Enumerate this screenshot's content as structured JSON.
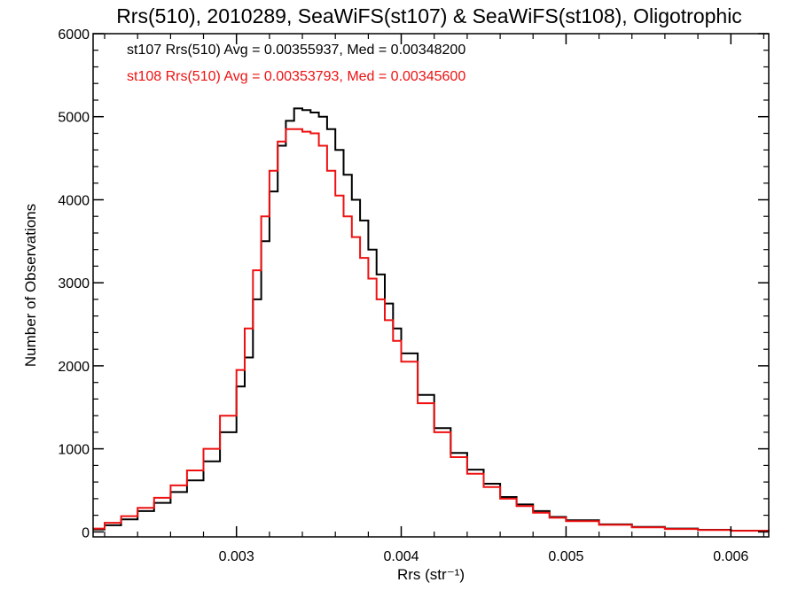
{
  "chart_data": {
    "type": "line",
    "step": true,
    "title": "Rrs(510), 2010289, SeaWiFS(st107) & SeaWiFS(st108), Oligotrophic",
    "xlabel": "Rrs (str⁻¹)",
    "ylabel": "Number of Observations",
    "xlim": [
      0.00213,
      0.00623
    ],
    "ylim": [
      -60,
      6000
    ],
    "xticks": [
      0.003,
      0.004,
      0.005,
      0.006
    ],
    "xtick_labels": [
      "0.003",
      "0.004",
      "0.005",
      "0.006"
    ],
    "yticks": [
      0,
      1000,
      2000,
      3000,
      4000,
      5000,
      6000
    ],
    "ytick_labels": [
      "0",
      "1000",
      "2000",
      "3000",
      "4000",
      "5000",
      "6000"
    ],
    "grid": false,
    "legend_position": "top-left",
    "x": [
      0.00213,
      0.0022,
      0.0023,
      0.0024,
      0.0025,
      0.0026,
      0.0027,
      0.0028,
      0.0029,
      0.003,
      0.00305,
      0.0031,
      0.00315,
      0.0032,
      0.00325,
      0.0033,
      0.00335,
      0.0034,
      0.00345,
      0.0035,
      0.00355,
      0.0036,
      0.00365,
      0.0037,
      0.00375,
      0.0038,
      0.00385,
      0.0039,
      0.00395,
      0.004,
      0.0041,
      0.0042,
      0.0043,
      0.0044,
      0.0045,
      0.0046,
      0.0047,
      0.0048,
      0.0049,
      0.005,
      0.0052,
      0.0054,
      0.0056,
      0.0058,
      0.006,
      0.00623
    ],
    "series": [
      {
        "name": "st107",
        "color": "#000000",
        "stats": "st107 Rrs(510) Avg = 0.00355937, Med = 0.00348200",
        "values": [
          30,
          80,
          150,
          250,
          350,
          480,
          620,
          850,
          1200,
          1750,
          2100,
          2800,
          3500,
          4100,
          4650,
          4950,
          5100,
          5080,
          5050,
          5000,
          4850,
          4600,
          4300,
          4000,
          3750,
          3400,
          3100,
          2750,
          2450,
          2150,
          1650,
          1250,
          950,
          750,
          580,
          420,
          330,
          250,
          180,
          140,
          90,
          60,
          40,
          25,
          15,
          10
        ]
      },
      {
        "name": "st108",
        "color": "#ee1111",
        "stats": "st108 Rrs(510) Avg = 0.00353793, Med = 0.00345600",
        "values": [
          40,
          110,
          190,
          290,
          410,
          560,
          740,
          1000,
          1400,
          1950,
          2450,
          3150,
          3800,
          4350,
          4700,
          4850,
          4850,
          4820,
          4800,
          4650,
          4350,
          4050,
          3800,
          3550,
          3300,
          3050,
          2800,
          2550,
          2300,
          2050,
          1550,
          1200,
          900,
          700,
          540,
          400,
          310,
          230,
          170,
          130,
          85,
          55,
          35,
          22,
          14,
          9
        ]
      }
    ]
  }
}
